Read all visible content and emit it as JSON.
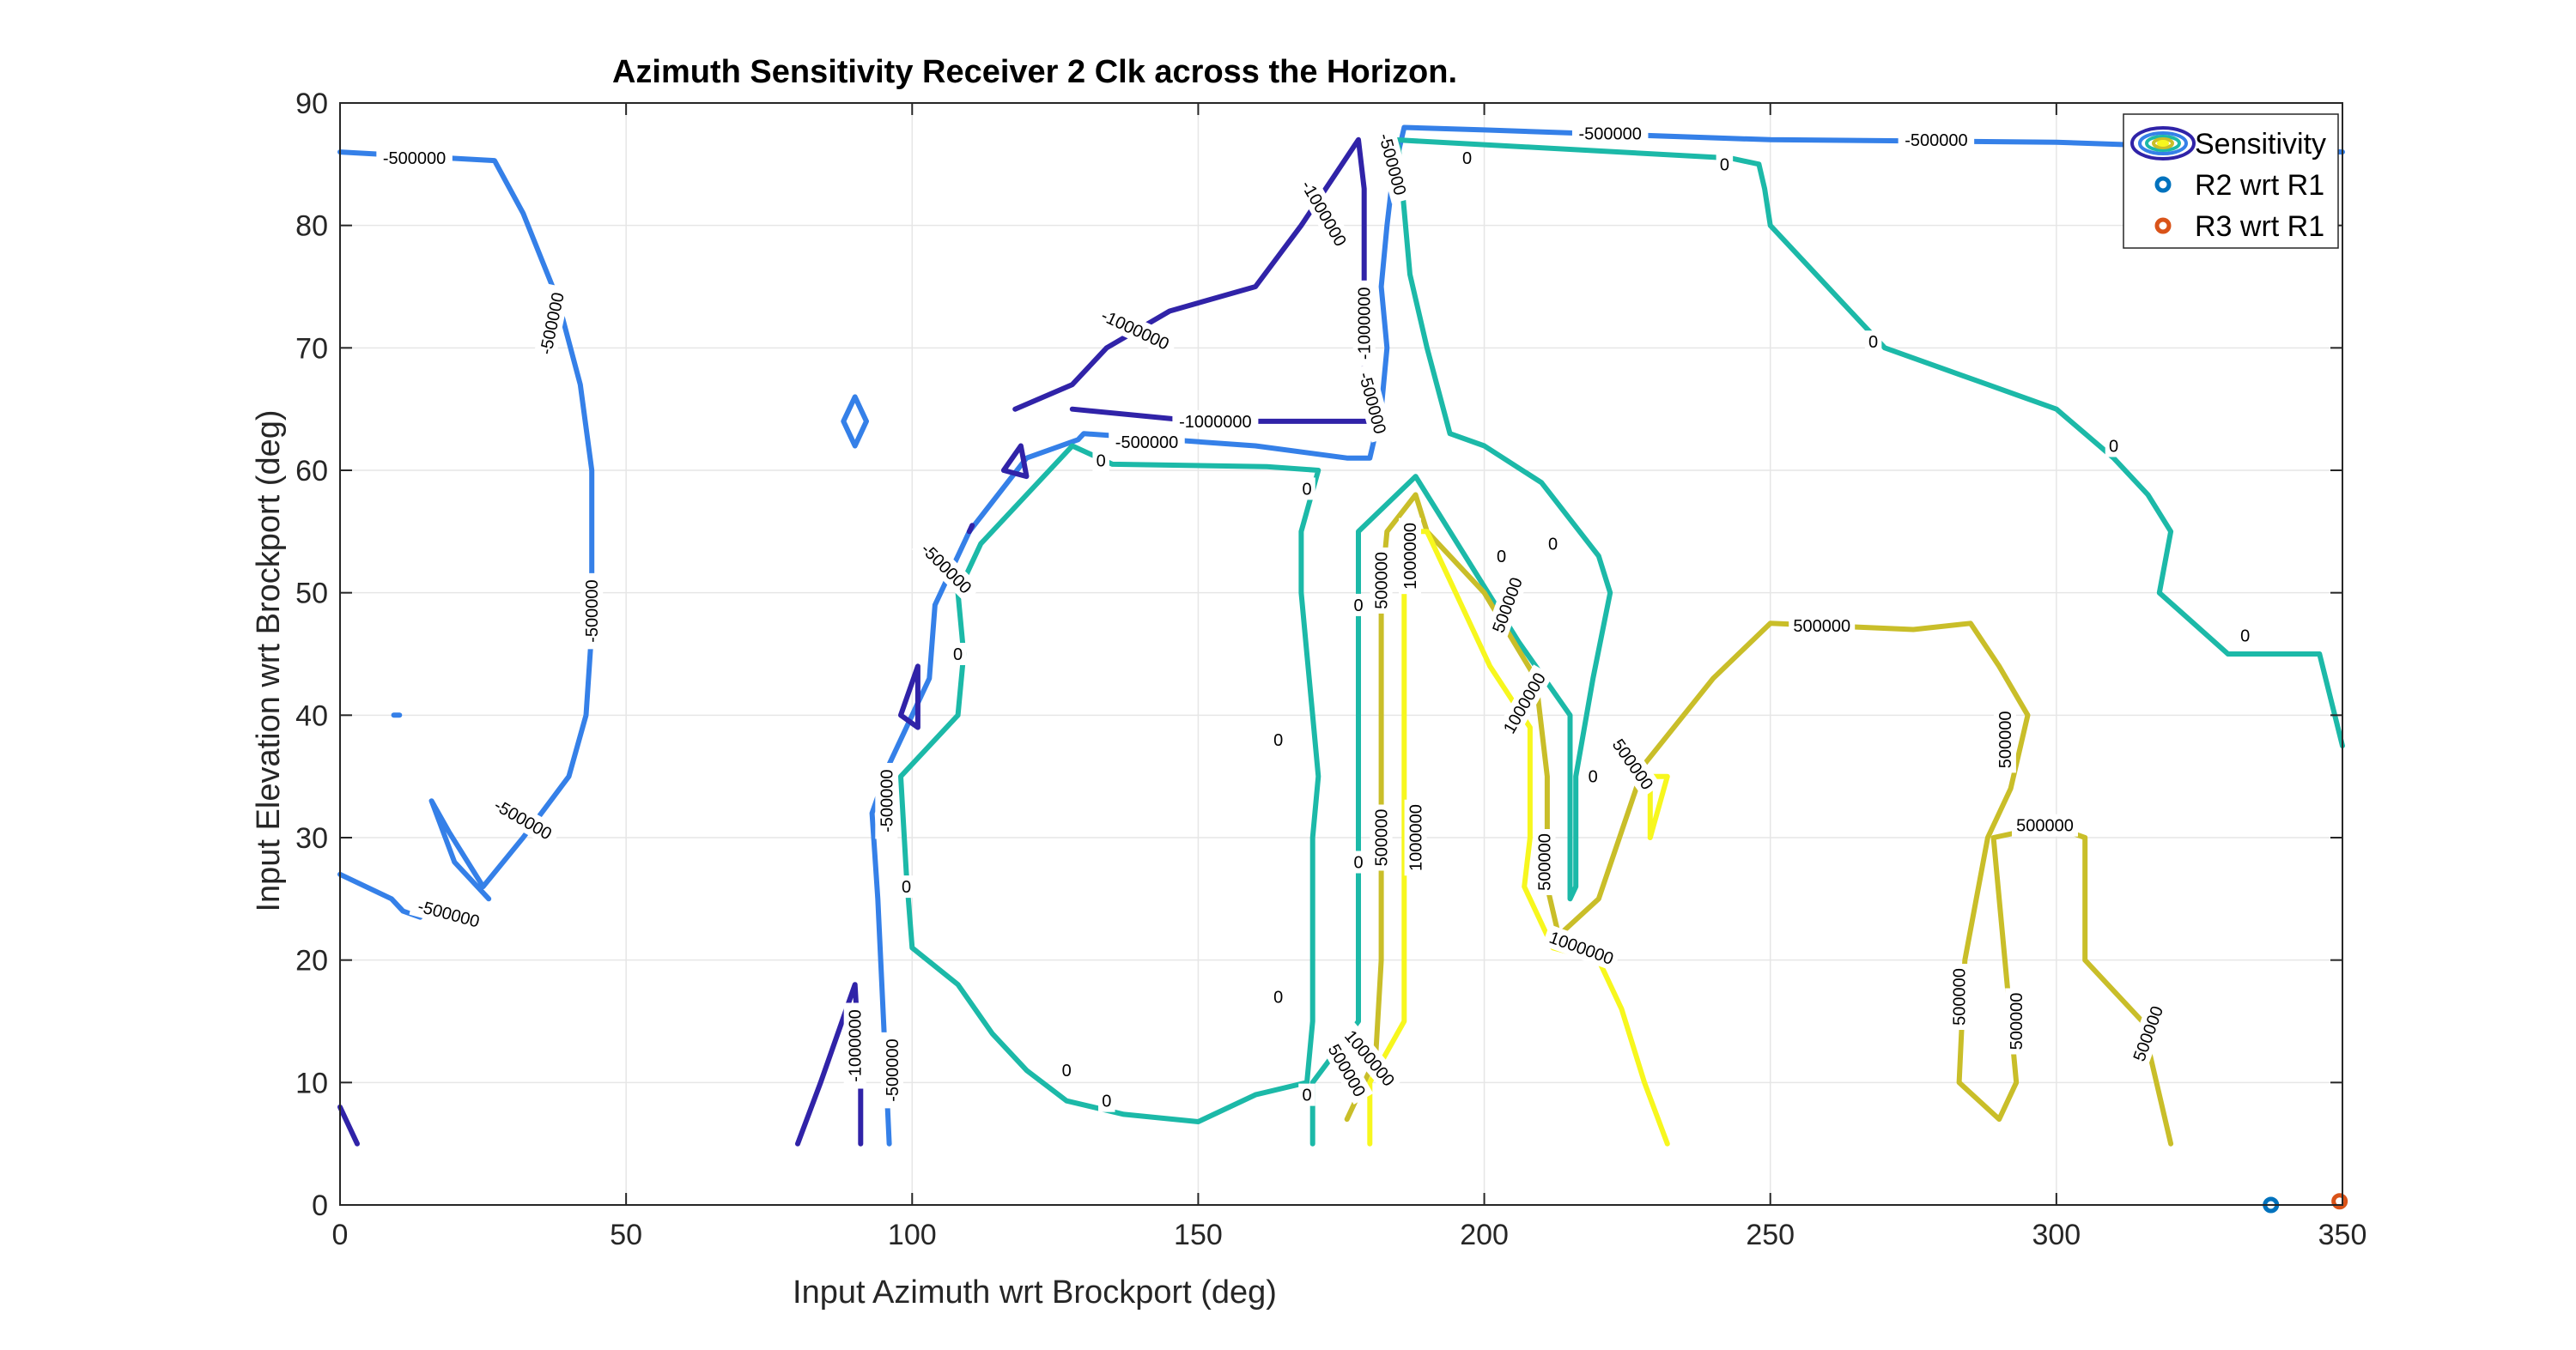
{
  "chart_data": {
    "type": "contour",
    "title": "Azimuth Sensitivity Receiver 2 Clk across the Horizon.",
    "xlabel": "Input Azimuth wrt Brockport (deg)",
    "ylabel": "Input Elevation wrt Brockport (deg)",
    "xlim": [
      0,
      350
    ],
    "ylim": [
      0,
      90
    ],
    "xticks": [
      0,
      50,
      100,
      150,
      200,
      250,
      300,
      350
    ],
    "yticks": [
      0,
      10,
      20,
      30,
      40,
      50,
      60,
      70,
      80,
      90
    ],
    "grid": true,
    "legend_position": "top-right",
    "legend": [
      {
        "label": "Sensitivity",
        "kind": "contour-swatch"
      },
      {
        "label": "R2 wrt R1",
        "kind": "marker",
        "color": "#0072BD"
      },
      {
        "label": "R3 wrt R1",
        "kind": "marker",
        "color": "#D95319"
      }
    ],
    "level_colors": {
      "-1000000": "#3023A8",
      "-500000": "#3580E8",
      "0": "#1CB9A8",
      "500000": "#C9BE29",
      "1000000": "#F7F71E"
    },
    "contours": [
      {
        "level": -500000,
        "points": [
          [
            0,
            86
          ],
          [
            27,
            85.3
          ],
          [
            32,
            81
          ],
          [
            38,
            74
          ],
          [
            42,
            67
          ],
          [
            44,
            60
          ],
          [
            44,
            54
          ],
          [
            44,
            47
          ],
          [
            43,
            40
          ],
          [
            40,
            35
          ],
          [
            32,
            30
          ],
          [
            25,
            26
          ],
          [
            19,
            30.5
          ],
          [
            16,
            33
          ],
          [
            20,
            28
          ],
          [
            26,
            25
          ]
        ]
      },
      {
        "level": -500000,
        "points": [
          [
            0,
            27
          ],
          [
            9,
            25
          ],
          [
            11,
            24
          ],
          [
            14,
            23.5
          ]
        ]
      },
      {
        "level": -500000,
        "points": [
          [
            88,
            64
          ],
          [
            90,
            66
          ],
          [
            92,
            64
          ],
          [
            90,
            62
          ],
          [
            88,
            64
          ]
        ]
      },
      {
        "level": -500000,
        "points": [
          [
            9.4,
            40
          ],
          [
            10.4,
            40
          ]
        ]
      },
      {
        "level": -500000,
        "points": [
          [
            96,
            5
          ],
          [
            95,
            15
          ],
          [
            94,
            25
          ],
          [
            93,
            32
          ],
          [
            96,
            36
          ],
          [
            103,
            43
          ],
          [
            104,
            49
          ],
          [
            110,
            55
          ],
          [
            120,
            61
          ],
          [
            129,
            62.5
          ],
          [
            130,
            63
          ],
          [
            160,
            62
          ],
          [
            176,
            61
          ],
          [
            180,
            61
          ],
          [
            182,
            65
          ],
          [
            183,
            70
          ],
          [
            182,
            75
          ],
          [
            183,
            80
          ],
          [
            184,
            84
          ],
          [
            186,
            88
          ],
          [
            200,
            87.8
          ],
          [
            250,
            87
          ],
          [
            300,
            86.8
          ],
          [
            350,
            86
          ]
        ]
      },
      {
        "level": -1000000,
        "points": [
          [
            0,
            8
          ],
          [
            3,
            5
          ]
        ]
      },
      {
        "level": -1000000,
        "points": [
          [
            80,
            5
          ],
          [
            84,
            10
          ],
          [
            90,
            18
          ],
          [
            91,
            10
          ],
          [
            91,
            5
          ]
        ]
      },
      {
        "level": -1000000,
        "points": [
          [
            110,
            55
          ],
          [
            110.5,
            55.5
          ]
        ]
      },
      {
        "level": -1000000,
        "points": [
          [
            98,
            40
          ],
          [
            101,
            44
          ],
          [
            101,
            39
          ],
          [
            98,
            40
          ]
        ]
      },
      {
        "level": -1000000,
        "points": [
          [
            116,
            60
          ],
          [
            119,
            62
          ],
          [
            120,
            59.5
          ],
          [
            116,
            60
          ]
        ]
      },
      {
        "level": -1000000,
        "points": [
          [
            118,
            65
          ],
          [
            128,
            67
          ],
          [
            134,
            70
          ],
          [
            145,
            73
          ],
          [
            160,
            75
          ],
          [
            168,
            80
          ],
          [
            178,
            87
          ],
          [
            179,
            83
          ],
          [
            179,
            75
          ],
          [
            179,
            68
          ],
          [
            180,
            64
          ],
          [
            150,
            64
          ],
          [
            128,
            65
          ]
        ]
      },
      {
        "level": 0,
        "points": [
          [
            183,
            85
          ],
          [
            184,
            87
          ],
          [
            243,
            85.5
          ],
          [
            248,
            85
          ],
          [
            249,
            83
          ],
          [
            250,
            80
          ],
          [
            262,
            74
          ],
          [
            270,
            70
          ],
          [
            288,
            67
          ],
          [
            300,
            65
          ],
          [
            305,
            63
          ],
          [
            310,
            61
          ],
          [
            316,
            58
          ],
          [
            320,
            55
          ],
          [
            318,
            50
          ],
          [
            330,
            45
          ],
          [
            346,
            45
          ],
          [
            350,
            37.5
          ]
        ]
      },
      {
        "level": 0,
        "points": [
          [
            128,
            62
          ],
          [
            135,
            60.5
          ],
          [
            162,
            60.3
          ],
          [
            171,
            60
          ],
          [
            168,
            55
          ],
          [
            168,
            50
          ],
          [
            169,
            45
          ],
          [
            170,
            40
          ],
          [
            171,
            35
          ],
          [
            170,
            30
          ],
          [
            170,
            25
          ],
          [
            170,
            20
          ],
          [
            170,
            15
          ],
          [
            169,
            10
          ],
          [
            160,
            9
          ],
          [
            150,
            6.8
          ],
          [
            137,
            7.4
          ],
          [
            127,
            8.5
          ],
          [
            120,
            11
          ],
          [
            114,
            14
          ],
          [
            108,
            18
          ],
          [
            100,
            21
          ],
          [
            99,
            27
          ],
          [
            98,
            35
          ],
          [
            108,
            40
          ],
          [
            109,
            45
          ],
          [
            108,
            50
          ],
          [
            112,
            54
          ],
          [
            128,
            62
          ]
        ]
      },
      {
        "level": 0,
        "points": [
          [
            170,
            5
          ],
          [
            170,
            10
          ],
          [
            178,
            15
          ],
          [
            178,
            20
          ],
          [
            178,
            30
          ],
          [
            178,
            40
          ],
          [
            178,
            50
          ],
          [
            178,
            55
          ],
          [
            188,
            59.5
          ],
          [
            194,
            55
          ],
          [
            206,
            46
          ],
          [
            215,
            40
          ],
          [
            215,
            30
          ],
          [
            215,
            25
          ],
          [
            216,
            26
          ],
          [
            216,
            35
          ],
          [
            219,
            43
          ],
          [
            222,
            50
          ],
          [
            220,
            53
          ],
          [
            210,
            59
          ],
          [
            200,
            62
          ],
          [
            194,
            63
          ],
          [
            190,
            70
          ],
          [
            187,
            76
          ],
          [
            185,
            86.5
          ]
        ]
      },
      {
        "level": 500000,
        "points": [
          [
            176,
            7
          ],
          [
            181,
            12
          ],
          [
            182,
            20
          ],
          [
            182,
            30
          ],
          [
            182,
            40
          ],
          [
            182,
            50
          ],
          [
            183,
            55
          ],
          [
            188,
            58
          ],
          [
            190,
            55
          ],
          [
            200,
            50
          ],
          [
            209,
            43
          ],
          [
            211,
            35
          ],
          [
            211,
            26
          ],
          [
            213,
            22
          ],
          [
            220,
            25
          ],
          [
            228,
            36
          ],
          [
            240,
            43
          ],
          [
            250,
            47.5
          ],
          [
            275,
            47
          ],
          [
            285,
            47.5
          ],
          [
            290,
            44
          ],
          [
            295,
            40
          ],
          [
            292,
            34
          ],
          [
            288,
            30
          ],
          [
            286,
            25
          ],
          [
            284,
            20
          ],
          [
            283,
            10
          ],
          [
            290,
            7
          ],
          [
            293,
            10
          ],
          [
            291,
            20
          ],
          [
            289,
            30
          ],
          [
            299,
            31
          ],
          [
            305,
            30
          ],
          [
            305,
            20
          ],
          [
            309,
            18
          ],
          [
            315,
            15
          ],
          [
            320,
            5
          ]
        ]
      },
      {
        "level": 1000000,
        "points": [
          [
            180,
            5
          ],
          [
            180,
            10
          ],
          [
            186,
            15
          ],
          [
            186,
            20
          ],
          [
            186,
            30
          ],
          [
            186,
            40
          ],
          [
            186,
            50
          ],
          [
            186,
            55
          ],
          [
            190,
            55
          ],
          [
            195,
            50
          ],
          [
            201,
            44
          ],
          [
            208,
            39
          ],
          [
            208,
            30
          ],
          [
            207,
            26
          ],
          [
            212,
            21
          ],
          [
            220,
            20
          ],
          [
            224,
            16
          ],
          [
            228,
            10
          ],
          [
            232,
            5
          ]
        ]
      },
      {
        "level": 1000000,
        "points": [
          [
            229,
            35
          ],
          [
            232,
            35
          ],
          [
            229,
            30
          ],
          [
            229,
            35
          ]
        ]
      }
    ],
    "contour_labels": [
      {
        "text": "-500000",
        "x": 13,
        "y": 85.5,
        "angle": 0
      },
      {
        "text": "-500000",
        "x": 37,
        "y": 72,
        "angle": 78
      },
      {
        "text": "-500000",
        "x": 44,
        "y": 48.5,
        "angle": 90
      },
      {
        "text": "-500000",
        "x": 32,
        "y": 31.5,
        "angle": -30
      },
      {
        "text": "-500000",
        "x": 19,
        "y": 23.8,
        "angle": -15
      },
      {
        "text": "-500000",
        "x": 95.5,
        "y": 33,
        "angle": 90
      },
      {
        "text": "-500000",
        "x": 96.5,
        "y": 11,
        "angle": 90
      },
      {
        "text": "-500000",
        "x": 106,
        "y": 52,
        "angle": -45
      },
      {
        "text": "-500000",
        "x": 141,
        "y": 62.3,
        "angle": 0
      },
      {
        "text": "-500000",
        "x": 180.5,
        "y": 65.5,
        "angle": -75
      },
      {
        "text": "-500000",
        "x": 184,
        "y": 85,
        "angle": -75
      },
      {
        "text": "-500000",
        "x": 222,
        "y": 87.5,
        "angle": 0
      },
      {
        "text": "-500000",
        "x": 279,
        "y": 87,
        "angle": 0
      },
      {
        "text": "-1000000",
        "x": 90,
        "y": 13,
        "angle": 90
      },
      {
        "text": "-1000000",
        "x": 139,
        "y": 71.5,
        "angle": -25
      },
      {
        "text": "-1000000",
        "x": 153,
        "y": 64,
        "angle": 0
      },
      {
        "text": "-1000000",
        "x": 172,
        "y": 81,
        "angle": -60
      },
      {
        "text": "-1000000",
        "x": 179,
        "y": 72,
        "angle": 90
      },
      {
        "text": "0",
        "x": 133,
        "y": 60.8,
        "angle": 0
      },
      {
        "text": "0",
        "x": 169,
        "y": 58.5,
        "angle": 0
      },
      {
        "text": "0",
        "x": 108,
        "y": 45,
        "angle": 0
      },
      {
        "text": "0",
        "x": 99,
        "y": 26,
        "angle": 0
      },
      {
        "text": "0",
        "x": 127,
        "y": 11,
        "angle": 0
      },
      {
        "text": "0",
        "x": 134,
        "y": 8.5,
        "angle": 0
      },
      {
        "text": "0",
        "x": 164,
        "y": 38,
        "angle": 0
      },
      {
        "text": "0",
        "x": 164,
        "y": 17,
        "angle": 0
      },
      {
        "text": "0",
        "x": 197,
        "y": 85.5,
        "angle": 0
      },
      {
        "text": "0",
        "x": 242,
        "y": 85,
        "angle": 0
      },
      {
        "text": "0",
        "x": 268,
        "y": 70.5,
        "angle": 0
      },
      {
        "text": "0",
        "x": 310,
        "y": 62,
        "angle": 0
      },
      {
        "text": "0",
        "x": 333,
        "y": 46.5,
        "angle": 0
      },
      {
        "text": "0",
        "x": 178,
        "y": 49,
        "angle": 0
      },
      {
        "text": "0",
        "x": 178,
        "y": 28,
        "angle": 0
      },
      {
        "text": "0",
        "x": 169,
        "y": 9,
        "angle": 0
      },
      {
        "text": "0",
        "x": 203,
        "y": 53,
        "angle": 0
      },
      {
        "text": "0",
        "x": 212,
        "y": 54,
        "angle": 0
      },
      {
        "text": "0",
        "x": 219,
        "y": 35,
        "angle": 0
      },
      {
        "text": "500000",
        "x": 182,
        "y": 51,
        "angle": 90
      },
      {
        "text": "500000",
        "x": 182,
        "y": 30,
        "angle": 90
      },
      {
        "text": "500000",
        "x": 176,
        "y": 11,
        "angle": -60
      },
      {
        "text": "500000",
        "x": 204,
        "y": 49,
        "angle": 70
      },
      {
        "text": "500000",
        "x": 210.5,
        "y": 28,
        "angle": 90
      },
      {
        "text": "500000",
        "x": 226,
        "y": 36,
        "angle": -55
      },
      {
        "text": "500000",
        "x": 259,
        "y": 47.3,
        "angle": 0
      },
      {
        "text": "500000",
        "x": 291,
        "y": 38,
        "angle": 90
      },
      {
        "text": "500000",
        "x": 298,
        "y": 31,
        "angle": 0
      },
      {
        "text": "500000",
        "x": 283,
        "y": 17,
        "angle": 90
      },
      {
        "text": "500000",
        "x": 293,
        "y": 15,
        "angle": 90
      },
      {
        "text": "500000",
        "x": 316,
        "y": 14,
        "angle": 70
      },
      {
        "text": "1000000",
        "x": 187,
        "y": 53,
        "angle": 90
      },
      {
        "text": "1000000",
        "x": 188,
        "y": 30,
        "angle": 90
      },
      {
        "text": "1000000",
        "x": 180,
        "y": 12,
        "angle": -50
      },
      {
        "text": "1000000",
        "x": 207,
        "y": 41,
        "angle": 60
      },
      {
        "text": "1000000",
        "x": 217,
        "y": 21,
        "angle": -20
      }
    ],
    "markers": [
      {
        "series": "R2 wrt R1",
        "x": 337.5,
        "y": 0,
        "color": "#0072BD"
      },
      {
        "series": "R3 wrt R1",
        "x": 349.5,
        "y": 0.3,
        "color": "#D95319"
      }
    ]
  }
}
